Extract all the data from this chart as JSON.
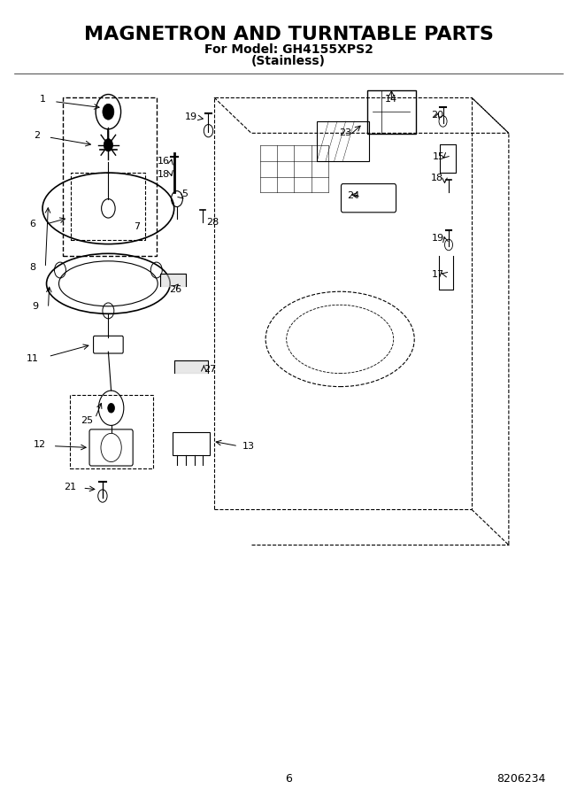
{
  "title_line1": "MAGNETRON AND TURNTABLE PARTS",
  "title_line2": "For Model: GH4155XPS2",
  "title_line3": "(Stainless)",
  "page_number": "6",
  "doc_number": "8206234",
  "bg_color": "#ffffff",
  "title_fontsize": 16,
  "subtitle_fontsize": 10,
  "footer_fontsize": 9,
  "fig_width": 6.52,
  "fig_height": 9.0,
  "dpi": 100
}
